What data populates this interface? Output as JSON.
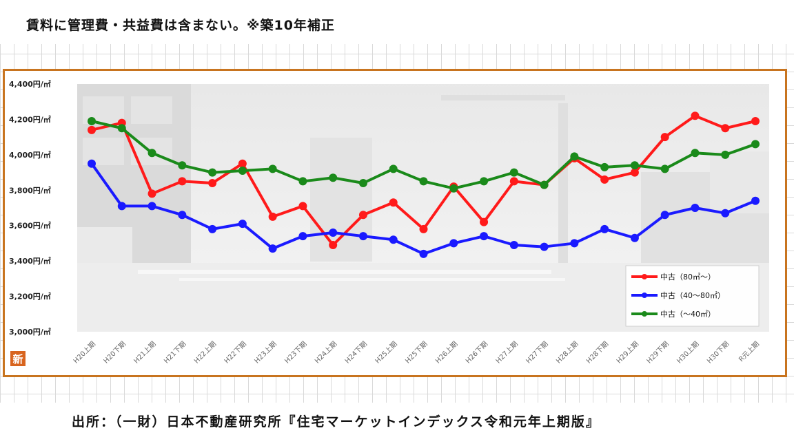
{
  "note": "賃料に管理費・共益費は含まない。※築10年補正",
  "source": "出所：（一財）日本不動産研究所『住宅マーケットインデックス令和元年上期版』",
  "logo_text": "新",
  "colors": {
    "frame": "#c8741f",
    "series_red": "#ff1a1a",
    "series_blue": "#1a1aff",
    "series_green": "#1a8a1a"
  },
  "chart_data": {
    "type": "line",
    "categories": [
      "H20上期",
      "H20下期",
      "H21上期",
      "H21下期",
      "H22上期",
      "H22下期",
      "H23上期",
      "H23下期",
      "H24上期",
      "H24下期",
      "H25上期",
      "H25下期",
      "H26上期",
      "H26下期",
      "H27上期",
      "H27下期",
      "H28上期",
      "H28下期",
      "H29上期",
      "H29下期",
      "H30上期",
      "H30下期",
      "R元上期"
    ],
    "y_ticks": [
      "3,000円/㎡",
      "3,200円/㎡",
      "3,400円/㎡",
      "3,600円/㎡",
      "3,800円/㎡",
      "4,000円/㎡",
      "4,200円/㎡",
      "4,400円/㎡"
    ],
    "ylim": [
      3000,
      4400
    ],
    "legend_position": "bottom-right",
    "series": [
      {
        "name": "中古（80㎡～）",
        "color": "#ff1a1a",
        "values": [
          4140,
          4180,
          3780,
          3850,
          3840,
          3950,
          3650,
          3710,
          3490,
          3660,
          3730,
          3580,
          3820,
          3620,
          3850,
          3830,
          3980,
          3860,
          3900,
          4100,
          4220,
          4150,
          4190
        ]
      },
      {
        "name": "中古（40～80㎡）",
        "color": "#1a1aff",
        "values": [
          3950,
          3710,
          3710,
          3660,
          3580,
          3610,
          3470,
          3540,
          3560,
          3540,
          3520,
          3440,
          3500,
          3540,
          3490,
          3480,
          3500,
          3580,
          3530,
          3660,
          3700,
          3670,
          3740
        ]
      },
      {
        "name": "中古（～40㎡）",
        "color": "#1a8a1a",
        "values": [
          4190,
          4150,
          4010,
          3940,
          3900,
          3910,
          3920,
          3850,
          3870,
          3840,
          3920,
          3850,
          3810,
          3850,
          3900,
          3830,
          3990,
          3930,
          3940,
          3920,
          4010,
          4000,
          4060
        ]
      }
    ]
  }
}
